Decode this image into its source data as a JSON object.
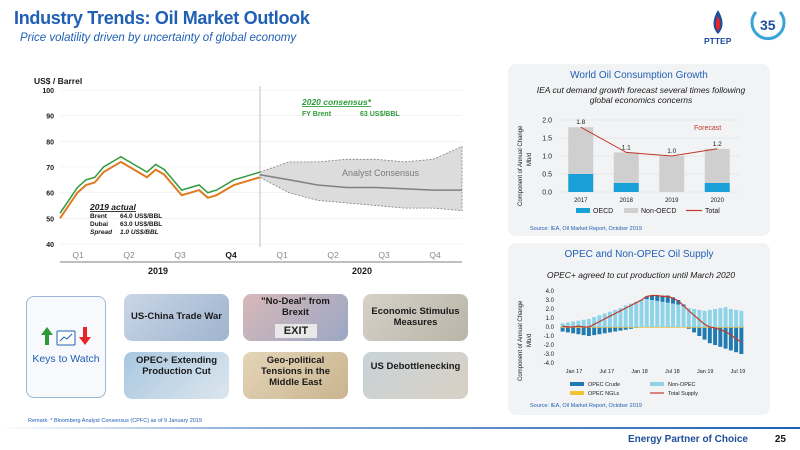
{
  "header": {
    "title": "Industry Trends: Oil Market Outlook",
    "subtitle": "Price volatility driven by uncertainty of global economy",
    "logo_text": "PTTEP"
  },
  "main_chart": {
    "type": "line",
    "ylabel": "US$ / Barrel",
    "ylim": [
      40,
      100
    ],
    "yticks": [
      "40",
      "50",
      "60",
      "70",
      "80",
      "90",
      "100"
    ],
    "quarters": [
      "Q1",
      "Q2",
      "Q3",
      "Q4",
      "Q1",
      "Q2",
      "Q3",
      "Q4"
    ],
    "years": [
      "2019",
      "2020"
    ],
    "consensus_label": "2020 consensus*",
    "consensus_item": "FY Brent",
    "consensus_value": "63 US$/BBL",
    "analyst_label": "Analyst Consensus",
    "actual_label": "2019 actual",
    "actual_rows": [
      {
        "name": "Brent",
        "value": "64.0 US$/BBL"
      },
      {
        "name": "Dubai",
        "value": "63.0 US$/BBL"
      },
      {
        "name": "Spread",
        "value": "1.0 US$/BBL"
      }
    ],
    "brent_line": [
      52,
      57,
      62,
      65,
      66,
      70,
      72,
      74,
      72,
      70,
      68,
      71,
      69,
      65,
      61,
      62,
      63,
      60,
      61,
      63,
      65,
      66,
      67,
      68
    ],
    "dubai_line": [
      50,
      55,
      60,
      63,
      64,
      68,
      70,
      72,
      70,
      68,
      66,
      69,
      67,
      63,
      59,
      60,
      61,
      58,
      59,
      61,
      63,
      64,
      65,
      66
    ],
    "forecast_mid": [
      67,
      65,
      63,
      62,
      62,
      61.5,
      61,
      61
    ],
    "forecast_high": [
      68,
      72,
      72,
      73,
      73,
      72,
      73,
      78
    ],
    "forecast_low": [
      66,
      60,
      57,
      56,
      55,
      54,
      54,
      53
    ],
    "colors": {
      "brent": "#2e9b3a",
      "dubai": "#e07a1f",
      "forecast": "#808080"
    }
  },
  "consumption_panel": {
    "title": "World Oil Consumption Growth",
    "subtitle": "IEA cut demand growth  forecast several times following global economics concerns",
    "ylabel": "Component of Annual Change",
    "yunit": "Mb/d",
    "yticks": [
      "0.0",
      "0.5",
      "1.0",
      "1.5",
      "2.0"
    ],
    "forecast_label": "Forecast",
    "source": "Source: IEA, Oil Market Report, October 2019",
    "chart_data": {
      "type": "bar",
      "categories": [
        "2017",
        "2018",
        "2019",
        "2020"
      ],
      "series": [
        {
          "name": "OECD",
          "values": [
            0.5,
            0.25,
            0.0,
            0.25
          ]
        },
        {
          "name": "Non-OECD",
          "values": [
            1.3,
            0.85,
            1.0,
            0.95
          ]
        }
      ],
      "totals": [
        1.8,
        1.1,
        1.0,
        1.2
      ],
      "total_labels": [
        "1.8",
        "1.1",
        "1.0",
        "1.2"
      ],
      "total_series_name": "Total",
      "ylim": [
        0,
        2.0
      ]
    }
  },
  "supply_panel": {
    "title": "OPEC and Non-OPEC Oil Supply",
    "subtitle": "OPEC+ agreed to cut production until March 2020",
    "ylabel": "Component of Annual Change",
    "yunit": "Mb/d",
    "yticks": [
      "4.0",
      "3.0",
      "2.0",
      "1.0",
      "0.0",
      "-1.0",
      "-2.0",
      "-3.0",
      "-4.0"
    ],
    "xticks": [
      "Jan 17",
      "Jul 17",
      "Jan 18",
      "Jul 18",
      "Jan 19",
      "Jul 19"
    ],
    "legend": [
      "OPEC Crude",
      "Non-OPEC",
      "OPEC NGLs",
      "Total Supply"
    ],
    "source": "Source: IEA, Oil Market Report, October 2019",
    "chart_data": {
      "type": "bar",
      "ylim": [
        -4,
        4
      ],
      "non_opec": [
        0.4,
        0.5,
        0.6,
        0.7,
        0.8,
        0.9,
        1.1,
        1.3,
        1.5,
        1.7,
        1.9,
        2.1,
        2.4,
        2.6,
        2.8,
        3.0,
        3.1,
        3.0,
        2.9,
        2.8,
        2.7,
        2.6,
        2.5,
        2.3,
        2.1,
        2.0,
        1.9,
        1.8,
        1.9,
        2.0,
        2.1,
        2.2,
        2.0,
        1.9,
        1.8
      ],
      "opec_crude": [
        -0.5,
        -0.6,
        -0.7,
        -0.8,
        -0.9,
        -1.0,
        -0.9,
        -0.8,
        -0.7,
        -0.6,
        -0.5,
        -0.4,
        -0.3,
        -0.2,
        -0.1,
        0.0,
        0.3,
        0.5,
        0.6,
        0.7,
        0.8,
        0.7,
        0.5,
        0.2,
        -0.2,
        -0.6,
        -1.0,
        -1.4,
        -1.8,
        -2.0,
        -2.2,
        -2.4,
        -2.6,
        -2.8,
        -3.0
      ],
      "total": [
        0.1,
        0.0,
        0.0,
        0.1,
        0.0,
        0.0,
        0.3,
        0.6,
        0.9,
        1.2,
        1.5,
        1.8,
        2.1,
        2.4,
        2.7,
        3.0,
        3.4,
        3.5,
        3.5,
        3.4,
        3.4,
        3.2,
        2.9,
        2.4,
        1.8,
        1.3,
        0.8,
        0.3,
        0.0,
        -0.1,
        -0.3,
        -0.5,
        -0.9,
        -1.3,
        -1.7
      ]
    }
  },
  "keys": {
    "label": "Keys to Watch",
    "tiles": [
      "US-China Trade War",
      "\"No-Deal\" from Brexit",
      "Economic Stimulus Measures",
      "OPEC+ Extending Production Cut",
      "Geo-political Tensions in the Middle East",
      "US Debottlenecking"
    ],
    "exit_sign": "EXIT"
  },
  "footer": {
    "remark": "Remark: * Bloomberg Analyst Consensus (CPFC) as of 9 January 2019",
    "tagline": "Energy Partner of Choice",
    "page": "25"
  }
}
